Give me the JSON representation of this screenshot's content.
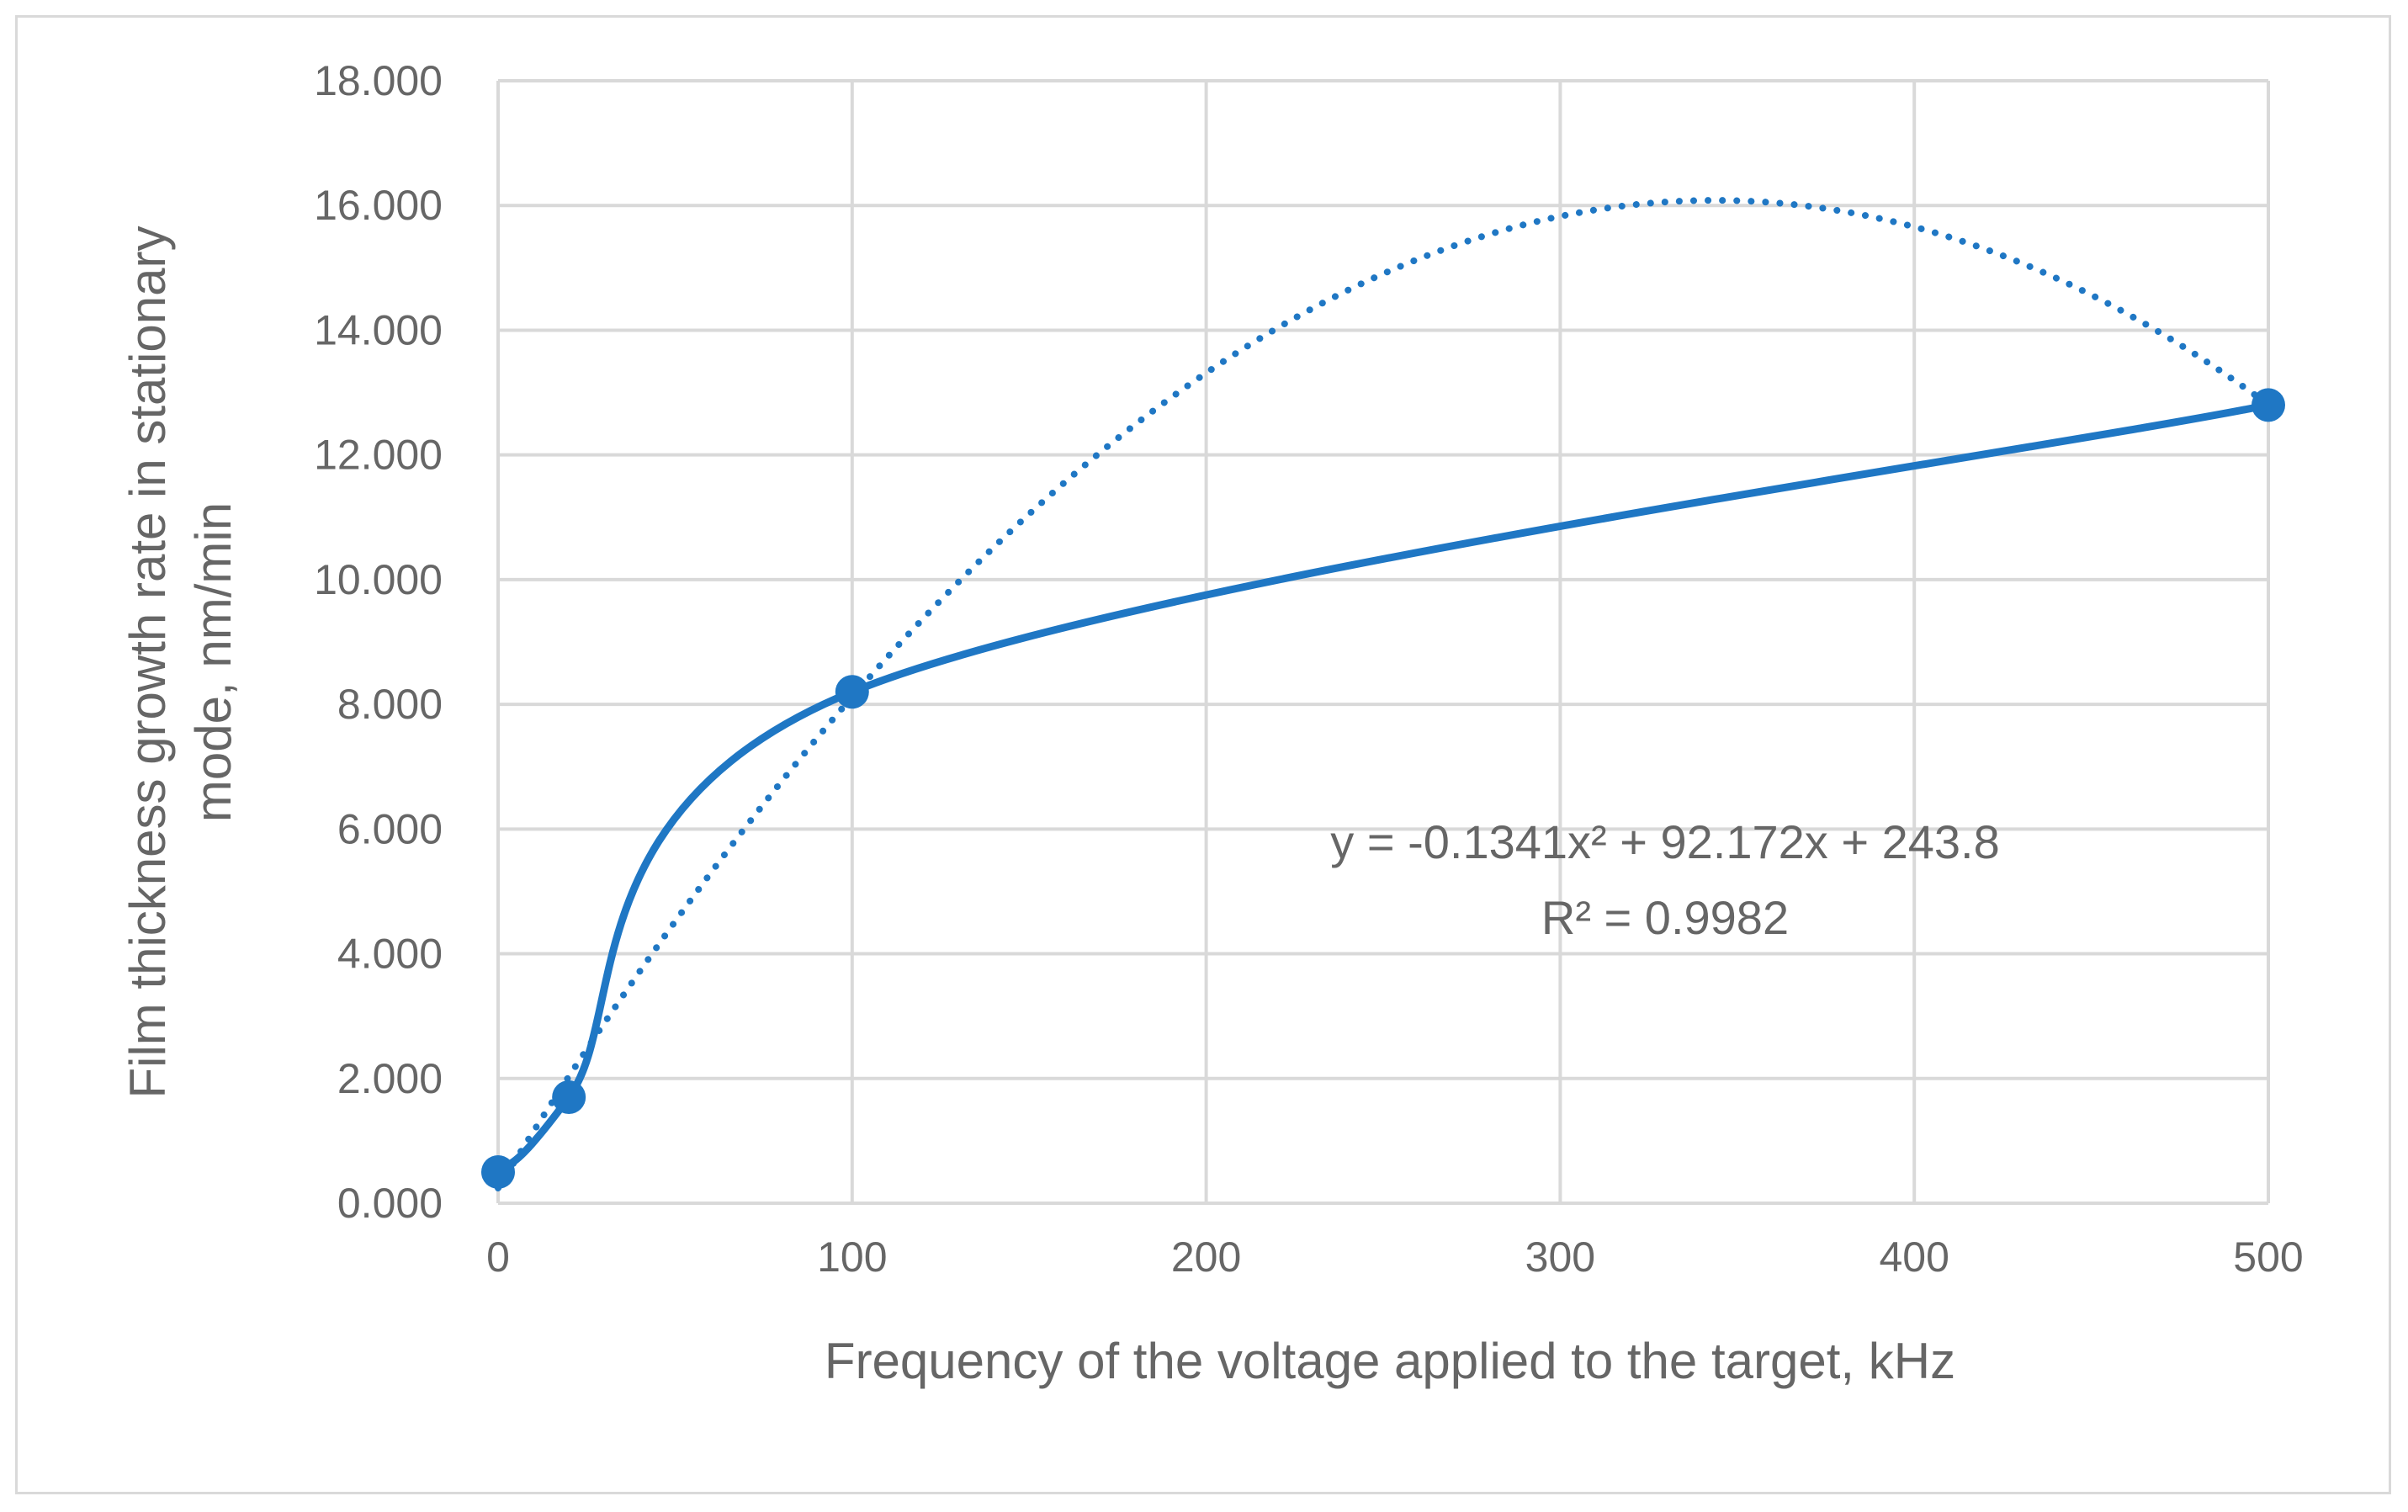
{
  "chart_data": {
    "type": "scatter",
    "title": "",
    "xlabel": "Frequency of the voltage applied to the target, kHz",
    "ylabel_lines": [
      "Film thickness growth rate in stationary",
      "mode, nm/min"
    ],
    "xlim": [
      0,
      500
    ],
    "ylim": [
      0,
      18
    ],
    "x_ticks": [
      0,
      100,
      200,
      300,
      400,
      500
    ],
    "x_tick_labels": [
      "0",
      "100",
      "200",
      "300",
      "400",
      "500"
    ],
    "y_ticks": [
      0,
      2,
      4,
      6,
      8,
      10,
      12,
      14,
      16,
      18
    ],
    "y_tick_labels": [
      "0.000",
      "2.000",
      "4.000",
      "6.000",
      "8.000",
      "10.000",
      "12.000",
      "14.000",
      "16.000",
      "18.000"
    ],
    "grid": true,
    "legend": "none",
    "series": [
      {
        "style": "smooth line with markers",
        "color": "#1f77c4",
        "x": [
          0,
          20,
          100,
          500
        ],
        "y": [
          0.5,
          1.7,
          8.2,
          12.8
        ]
      }
    ],
    "trendline": {
      "type": "polynomial (order 2), dotted",
      "color": "#1f77c4",
      "coefficients": [
        -0.1341,
        92.172,
        243.8
      ],
      "y_divisor": 1000,
      "x_range": [
        0,
        500
      ]
    },
    "annotations": {
      "equation": "y = -0.1341x² + 92.172x + 243.8",
      "r_squared": "R² = 0.9982"
    }
  }
}
